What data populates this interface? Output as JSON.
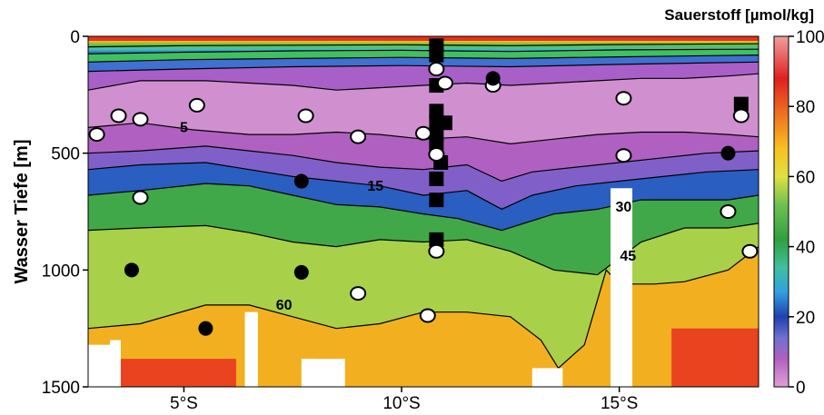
{
  "chart_data": {
    "type": "heatmap",
    "title": "Sauerstoff [µmol/kg]",
    "ylabel": "Wasser Tiefe [m]",
    "xlabel": "",
    "x_range": [
      2.8,
      18.2
    ],
    "y_range": [
      0,
      1500
    ],
    "y_reversed": true,
    "x_ticks": [
      {
        "value": 5,
        "label": "5°S"
      },
      {
        "value": 10,
        "label": "10°S"
      },
      {
        "value": 15,
        "label": "15°S"
      }
    ],
    "y_ticks": [
      {
        "value": 0,
        "label": "0"
      },
      {
        "value": 500,
        "label": "500"
      },
      {
        "value": 1000,
        "label": "1000"
      },
      {
        "value": 1500,
        "label": "1500"
      }
    ],
    "colorbar": {
      "range": [
        0,
        100
      ],
      "ticks": [
        "0",
        "20",
        "40",
        "60",
        "80",
        "100"
      ],
      "stops": [
        {
          "value": 0,
          "color": "#e0a0d8"
        },
        {
          "value": 8,
          "color": "#b060c0"
        },
        {
          "value": 14,
          "color": "#7070d0"
        },
        {
          "value": 20,
          "color": "#2040b0"
        },
        {
          "value": 27,
          "color": "#30a0e0"
        },
        {
          "value": 34,
          "color": "#40c0a0"
        },
        {
          "value": 42,
          "color": "#30a040"
        },
        {
          "value": 52,
          "color": "#70c050"
        },
        {
          "value": 60,
          "color": "#e0e040"
        },
        {
          "value": 68,
          "color": "#f8c020"
        },
        {
          "value": 76,
          "color": "#f08020"
        },
        {
          "value": 88,
          "color": "#e02020"
        },
        {
          "value": 100,
          "color": "#f0a0a0"
        }
      ]
    },
    "contour_labels": [
      {
        "text": "5",
        "x": 5.0,
        "y": 410
      },
      {
        "text": "15",
        "x": 9.4,
        "y": 660
      },
      {
        "text": "30",
        "x": 15.1,
        "y": 750
      },
      {
        "text": "45",
        "x": 15.2,
        "y": 960
      },
      {
        "text": "60",
        "x": 7.3,
        "y": 1170
      }
    ],
    "contours": [
      {
        "level": 60,
        "x": [
          2.8,
          4.0,
          5.5,
          6.5,
          7.5,
          8.5,
          9.5,
          10.5,
          11.5,
          12.5,
          13.2,
          13.6,
          14.2,
          14.7,
          15.0,
          15.8,
          16.5,
          17.5,
          18.2
        ],
        "y": [
          1250,
          1230,
          1150,
          1150,
          1200,
          1250,
          1230,
          1180,
          1180,
          1200,
          1300,
          1420,
          1320,
          1000,
          1060,
          1060,
          1050,
          1000,
          900
        ]
      },
      {
        "level": 45,
        "x": [
          2.8,
          4.0,
          5.5,
          6.5,
          7.5,
          8.5,
          9.5,
          10.5,
          11.5,
          12.5,
          13.5,
          14.5,
          15.0,
          15.5,
          16.5,
          17.5,
          18.2
        ],
        "y": [
          830,
          820,
          810,
          840,
          880,
          900,
          870,
          880,
          870,
          920,
          1000,
          1020,
          950,
          880,
          820,
          820,
          800
        ]
      },
      {
        "level": 30,
        "x": [
          2.8,
          4.0,
          5.5,
          6.5,
          7.5,
          8.5,
          9.5,
          10.5,
          11.3,
          12.3,
          13.5,
          14.5,
          15.5,
          16.5,
          17.5,
          18.2
        ],
        "y": [
          680,
          660,
          630,
          640,
          680,
          720,
          730,
          760,
          780,
          830,
          760,
          740,
          700,
          700,
          700,
          680
        ]
      },
      {
        "level": 15,
        "x": [
          2.8,
          4.0,
          5.5,
          6.5,
          7.5,
          8.5,
          9.5,
          10.5,
          11.5,
          12.3,
          13.0,
          14.0,
          15.0,
          16.0,
          17.0,
          18.2
        ],
        "y": [
          570,
          550,
          540,
          570,
          600,
          620,
          640,
          680,
          660,
          740,
          680,
          640,
          620,
          600,
          580,
          570
        ]
      },
      {
        "level": 10,
        "x": [
          2.8,
          4.0,
          5.5,
          6.5,
          7.5,
          8.5,
          9.5,
          10.5,
          11.5,
          12.3,
          13.0,
          14.0,
          15.0,
          16.0,
          17.0,
          18.2
        ],
        "y": [
          500,
          490,
          470,
          490,
          510,
          540,
          560,
          570,
          550,
          620,
          580,
          560,
          540,
          520,
          500,
          490
        ]
      },
      {
        "level": 5,
        "x": [
          2.8,
          4.0,
          5.2,
          6.5,
          7.5,
          8.5,
          9.5,
          10.5,
          11.5,
          12.5,
          13.5,
          14.5,
          15.5,
          16.5,
          17.5,
          18.2
        ],
        "y": [
          390,
          370,
          400,
          420,
          420,
          410,
          420,
          440,
          430,
          460,
          440,
          420,
          410,
          410,
          420,
          430
        ]
      },
      {
        "level": 5,
        "x": [
          2.8,
          4.0,
          5.5,
          6.5,
          7.5,
          8.5,
          9.5,
          10.5,
          11.5,
          12.5,
          13.5,
          14.5,
          15.5,
          16.5,
          17.5,
          18.2
        ],
        "y": [
          230,
          190,
          190,
          200,
          210,
          230,
          220,
          210,
          200,
          210,
          200,
          190,
          180,
          180,
          170,
          160
        ]
      },
      {
        "level": 20,
        "x": [
          2.8,
          5,
          7.5,
          10,
          12.5,
          15,
          18.2
        ],
        "y": [
          150,
          140,
          130,
          125,
          130,
          120,
          110
        ]
      },
      {
        "level": 30,
        "x": [
          2.8,
          5,
          7.5,
          10,
          12.5,
          15,
          18.2
        ],
        "y": [
          110,
          100,
          95,
          90,
          95,
          88,
          80
        ]
      },
      {
        "level": 45,
        "x": [
          2.8,
          5,
          7.5,
          10,
          12.5,
          15,
          18.2
        ],
        "y": [
          75,
          68,
          62,
          60,
          65,
          58,
          55
        ]
      },
      {
        "level": 60,
        "x": [
          2.8,
          5,
          7.5,
          10,
          12.5,
          15,
          18.2
        ],
        "y": [
          45,
          40,
          38,
          36,
          40,
          35,
          32
        ]
      }
    ],
    "bottom_mask": [
      {
        "x1": 2.8,
        "x2": 3.3,
        "top": 1320
      },
      {
        "x1": 3.3,
        "x2": 3.55,
        "top": 1300
      },
      {
        "x1": 6.4,
        "x2": 6.7,
        "top": 1180
      },
      {
        "x1": 7.7,
        "x2": 8.7,
        "top": 1380
      },
      {
        "x1": 13.0,
        "x2": 13.7,
        "top": 1420
      },
      {
        "x1": 14.8,
        "x2": 15.3,
        "top": 650
      }
    ],
    "open_circles": [
      {
        "x": 3.0,
        "y": 420
      },
      {
        "x": 3.5,
        "y": 340
      },
      {
        "x": 4.0,
        "y": 355
      },
      {
        "x": 5.3,
        "y": 295
      },
      {
        "x": 4.0,
        "y": 690
      },
      {
        "x": 7.8,
        "y": 340
      },
      {
        "x": 9.0,
        "y": 430
      },
      {
        "x": 10.5,
        "y": 415
      },
      {
        "x": 10.8,
        "y": 140
      },
      {
        "x": 11.0,
        "y": 200
      },
      {
        "x": 10.8,
        "y": 505
      },
      {
        "x": 10.8,
        "y": 920
      },
      {
        "x": 10.6,
        "y": 1195
      },
      {
        "x": 12.1,
        "y": 210
      },
      {
        "x": 15.1,
        "y": 265
      },
      {
        "x": 15.1,
        "y": 510
      },
      {
        "x": 17.5,
        "y": 750
      },
      {
        "x": 17.8,
        "y": 340
      },
      {
        "x": 18.0,
        "y": 920
      },
      {
        "x": 9.0,
        "y": 1100
      }
    ],
    "filled_circles": [
      {
        "x": 12.1,
        "y": 180
      },
      {
        "x": 7.7,
        "y": 620
      },
      {
        "x": 3.8,
        "y": 1000
      },
      {
        "x": 7.7,
        "y": 1010
      },
      {
        "x": 5.5,
        "y": 1250
      },
      {
        "x": 17.5,
        "y": 500
      }
    ],
    "filled_squares": [
      {
        "x": 10.8,
        "y": 40
      },
      {
        "x": 10.8,
        "y": 80
      },
      {
        "x": 10.8,
        "y": 210
      },
      {
        "x": 10.8,
        "y": 320
      },
      {
        "x": 10.8,
        "y": 370
      },
      {
        "x": 11.0,
        "y": 370
      },
      {
        "x": 10.8,
        "y": 420
      },
      {
        "x": 10.8,
        "y": 470
      },
      {
        "x": 10.9,
        "y": 540
      },
      {
        "x": 10.8,
        "y": 610
      },
      {
        "x": 10.8,
        "y": 700
      },
      {
        "x": 10.8,
        "y": 870
      },
      {
        "x": 17.8,
        "y": 290
      }
    ]
  }
}
